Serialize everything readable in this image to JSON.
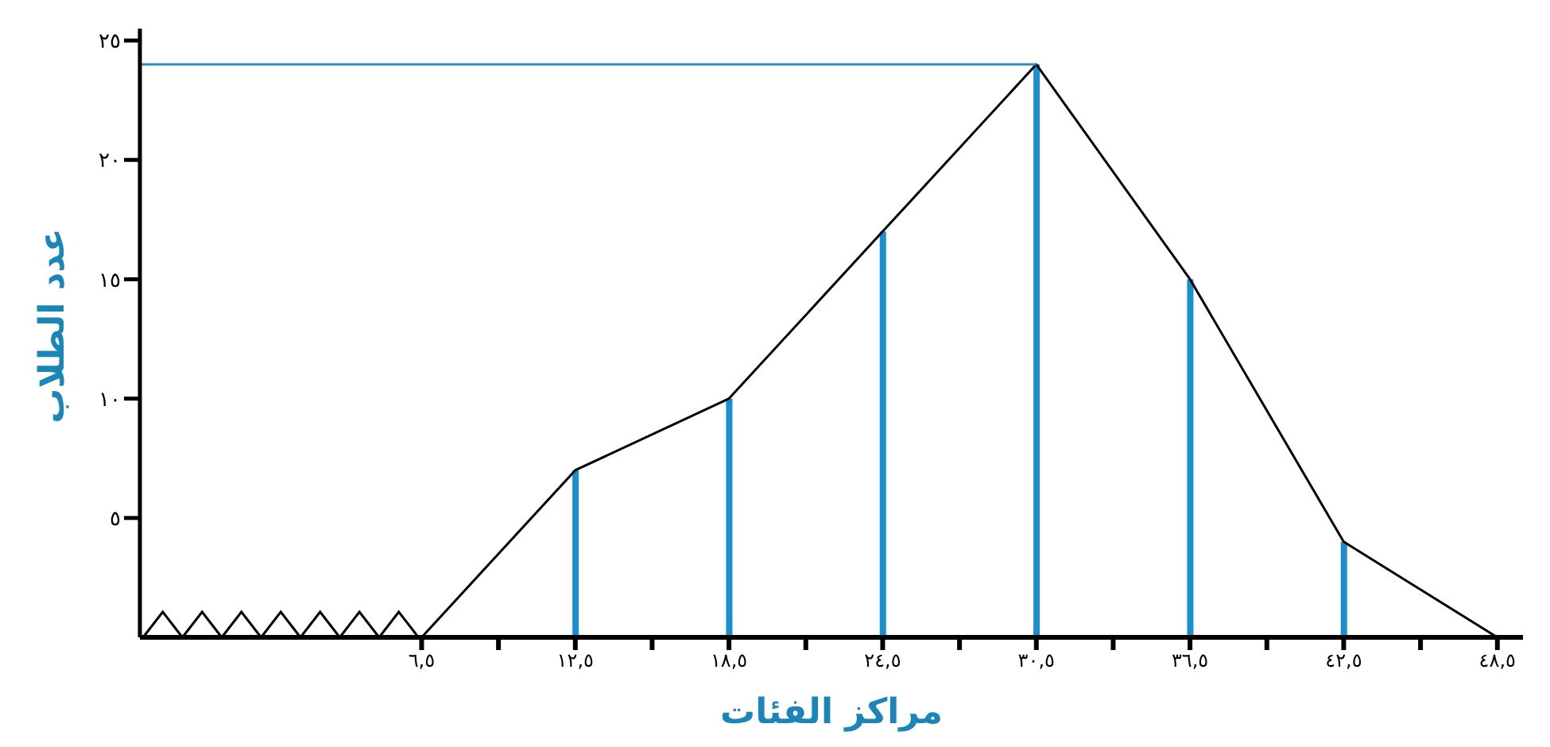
{
  "chart_data": {
    "type": "line",
    "xlabel": "مراكز الفئات",
    "ylabel": "عدد الطلاب",
    "x": [
      6.5,
      12.5,
      18.5,
      24.5,
      30.5,
      36.5,
      42.5,
      48.5
    ],
    "series": [
      {
        "color": "#000000",
        "values": [
          0,
          7,
          10,
          17,
          24,
          15,
          4,
          0
        ]
      },
      {
        "type": "bar",
        "color": "#1a8fd0",
        "x": [
          12.5,
          18.5,
          24.5,
          30.5,
          36.5,
          42.5
        ],
        "values": [
          7,
          10,
          17,
          24,
          15,
          4
        ]
      },
      {
        "color": "#2a8fbf",
        "x": [
          -4.5,
          30.5
        ],
        "values": [
          24,
          24
        ]
      }
    ],
    "xlim": [
      -4.5,
      49.5
    ],
    "xticks": [
      {
        "value": 6.5,
        "label": "٦,٥"
      },
      {
        "value": 9.5,
        "label": null
      },
      {
        "value": 12.5,
        "label": "١٢,٥"
      },
      {
        "value": 15.5,
        "label": null
      },
      {
        "value": 18.5,
        "label": "١٨,٥"
      },
      {
        "value": 21.5,
        "label": null
      },
      {
        "value": 24.5,
        "label": "٢٤,٥"
      },
      {
        "value": 27.5,
        "label": null
      },
      {
        "value": 30.5,
        "label": "٣٠,٥"
      },
      {
        "value": 33.5,
        "label": null
      },
      {
        "value": 36.5,
        "label": "٣٦,٥"
      },
      {
        "value": 39.5,
        "label": null
      },
      {
        "value": 42.5,
        "label": "٤٢,٥"
      },
      {
        "value": 45.5,
        "label": null
      },
      {
        "value": 48.5,
        "label": "٤٨,٥"
      }
    ],
    "ylim": [
      0,
      25.5
    ],
    "yticks": [
      {
        "value": 5,
        "label": "٥"
      },
      {
        "value": 10,
        "label": "١٠"
      },
      {
        "value": 15,
        "label": "١٥"
      },
      {
        "value": 20,
        "label": "٢٠"
      },
      {
        "value": 25,
        "label": "٢٥"
      }
    ],
    "grid": false,
    "legend": false,
    "marker": "none",
    "line_style": "solid"
  }
}
